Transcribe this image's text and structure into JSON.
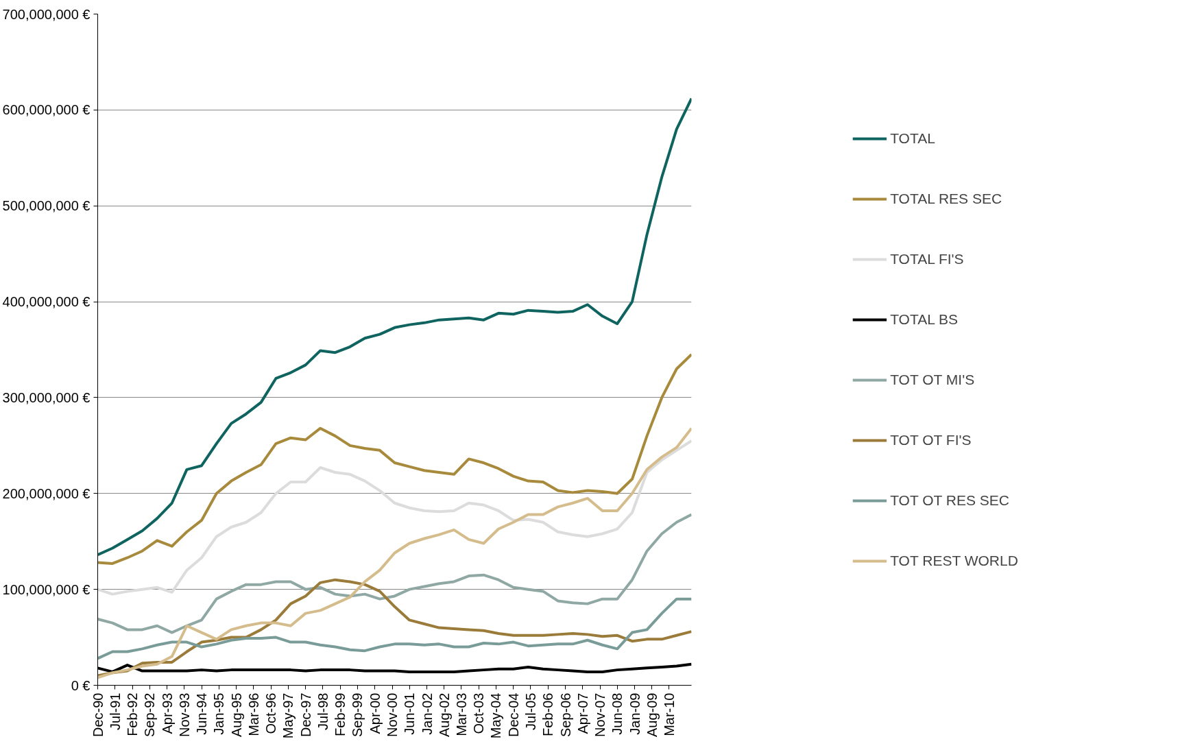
{
  "chart_data": {
    "type": "line",
    "x": [
      "1990-12",
      "1991-06",
      "1991-12",
      "1992-06",
      "1992-12",
      "1993-06",
      "1993-12",
      "1994-06",
      "1994-12",
      "1995-06",
      "1995-12",
      "1996-06",
      "1996-12",
      "1997-06",
      "1997-12",
      "1998-06",
      "1998-12",
      "1999-06",
      "1999-12",
      "2000-06",
      "2000-12",
      "2001-06",
      "2001-12",
      "2002-06",
      "2002-12",
      "2003-06",
      "2003-12",
      "2004-06",
      "2004-12",
      "2005-06",
      "2005-12",
      "2006-06",
      "2006-12",
      "2007-06",
      "2007-12",
      "2008-06",
      "2008-12",
      "2009-06",
      "2009-12",
      "2010-06",
      "2010-12"
    ],
    "series": [
      {
        "name": "TOTAL",
        "color": "#0f6460",
        "values": [
          136000000,
          143000000,
          152000000,
          161000000,
          174000000,
          190000000,
          225000000,
          229000000,
          252000000,
          273000000,
          283000000,
          295000000,
          320000000,
          326000000,
          334000000,
          349000000,
          347000000,
          353000000,
          362000000,
          366000000,
          373000000,
          376000000,
          378000000,
          381000000,
          382000000,
          383000000,
          381000000,
          388000000,
          387000000,
          391000000,
          390000000,
          389000000,
          390000000,
          397000000,
          385000000,
          377000000,
          400000000,
          470000000,
          530000000,
          580000000,
          612000000
        ]
      },
      {
        "name": "TOTAL RES SEC",
        "color": "#a88a3c",
        "values": [
          128000000,
          127000000,
          133000000,
          140000000,
          151000000,
          145000000,
          160000000,
          172000000,
          200000000,
          213000000,
          222000000,
          230000000,
          252000000,
          258000000,
          256000000,
          268000000,
          260000000,
          250000000,
          247000000,
          245000000,
          232000000,
          228000000,
          224000000,
          222000000,
          220000000,
          236000000,
          232000000,
          226000000,
          218000000,
          213000000,
          212000000,
          203000000,
          201000000,
          203000000,
          202000000,
          200000000,
          215000000,
          260000000,
          300000000,
          330000000,
          345000000
        ]
      },
      {
        "name": "TOTAL FI'S",
        "color": "#dcdcdc",
        "values": [
          100000000,
          95000000,
          98000000,
          100000000,
          102000000,
          97000000,
          120000000,
          133000000,
          155000000,
          165000000,
          170000000,
          180000000,
          200000000,
          212000000,
          212000000,
          227000000,
          222000000,
          220000000,
          213000000,
          203000000,
          190000000,
          185000000,
          182000000,
          181000000,
          182000000,
          190000000,
          188000000,
          182000000,
          172000000,
          173000000,
          170000000,
          160000000,
          157000000,
          155000000,
          158000000,
          163000000,
          180000000,
          222000000,
          235000000,
          245000000,
          255000000
        ]
      },
      {
        "name": "TOTAL BS",
        "color": "#000000",
        "values": [
          18000000,
          14000000,
          21000000,
          15000000,
          15000000,
          15000000,
          15000000,
          16000000,
          15000000,
          16000000,
          16000000,
          16000000,
          16000000,
          16000000,
          15000000,
          16000000,
          16000000,
          16000000,
          15000000,
          15000000,
          15000000,
          14000000,
          14000000,
          14000000,
          14000000,
          15000000,
          16000000,
          17000000,
          17000000,
          19000000,
          17000000,
          16000000,
          15000000,
          14000000,
          14000000,
          16000000,
          17000000,
          18000000,
          19000000,
          20000000,
          22000000
        ]
      },
      {
        "name": "TOT OT MI'S",
        "color": "#8fa8a4",
        "values": [
          69000000,
          65000000,
          58000000,
          58000000,
          62000000,
          55000000,
          62000000,
          68000000,
          90000000,
          98000000,
          105000000,
          105000000,
          108000000,
          108000000,
          100000000,
          102000000,
          95000000,
          93000000,
          95000000,
          90000000,
          93000000,
          100000000,
          103000000,
          106000000,
          108000000,
          114000000,
          115000000,
          110000000,
          102000000,
          100000000,
          98000000,
          88000000,
          86000000,
          85000000,
          90000000,
          90000000,
          110000000,
          140000000,
          158000000,
          170000000,
          178000000
        ]
      },
      {
        "name": "TOT OT FI'S",
        "color": "#9a7b3a",
        "values": [
          10000000,
          13000000,
          15000000,
          23000000,
          24000000,
          24000000,
          35000000,
          45000000,
          47000000,
          50000000,
          50000000,
          58000000,
          68000000,
          85000000,
          93000000,
          107000000,
          110000000,
          108000000,
          105000000,
          98000000,
          82000000,
          68000000,
          64000000,
          60000000,
          59000000,
          58000000,
          57000000,
          54000000,
          52000000,
          52000000,
          52000000,
          53000000,
          54000000,
          53000000,
          51000000,
          52000000,
          46000000,
          48000000,
          48000000,
          52000000,
          56000000
        ]
      },
      {
        "name": "TOT OT RES SEC",
        "color": "#7a9c98",
        "values": [
          28000000,
          35000000,
          35000000,
          38000000,
          42000000,
          45000000,
          45000000,
          40000000,
          43000000,
          47000000,
          49000000,
          49000000,
          50000000,
          45000000,
          45000000,
          42000000,
          40000000,
          37000000,
          36000000,
          40000000,
          43000000,
          43000000,
          42000000,
          43000000,
          40000000,
          40000000,
          44000000,
          43000000,
          45000000,
          41000000,
          42000000,
          43000000,
          43000000,
          47000000,
          42000000,
          38000000,
          55000000,
          58000000,
          75000000,
          90000000,
          90000000
        ]
      },
      {
        "name": "TOT REST WORLD",
        "color": "#d4bc8c",
        "values": [
          8000000,
          13000000,
          16000000,
          20000000,
          22000000,
          30000000,
          62000000,
          55000000,
          48000000,
          58000000,
          62000000,
          65000000,
          65000000,
          62000000,
          75000000,
          78000000,
          85000000,
          92000000,
          108000000,
          120000000,
          138000000,
          148000000,
          153000000,
          157000000,
          162000000,
          152000000,
          148000000,
          163000000,
          170000000,
          178000000,
          178000000,
          186000000,
          190000000,
          195000000,
          182000000,
          182000000,
          200000000,
          225000000,
          238000000,
          248000000,
          268000000
        ]
      }
    ],
    "xlim": [
      "1990-12",
      "2010-12"
    ],
    "xticks": [
      {
        "value": "1990-12",
        "label": "Dec-90"
      },
      {
        "value": "1991-07",
        "label": "Jul-91"
      },
      {
        "value": "1992-02",
        "label": "Feb-92"
      },
      {
        "value": "1992-09",
        "label": "Sep-92"
      },
      {
        "value": "1993-04",
        "label": "Apr-93"
      },
      {
        "value": "1993-11",
        "label": "Nov-93"
      },
      {
        "value": "1994-06",
        "label": "Jun-94"
      },
      {
        "value": "1995-01",
        "label": "Jan-95"
      },
      {
        "value": "1995-08",
        "label": "Aug-95"
      },
      {
        "value": "1996-03",
        "label": "Mar-96"
      },
      {
        "value": "1996-10",
        "label": "Oct-96"
      },
      {
        "value": "1997-05",
        "label": "May-97"
      },
      {
        "value": "1997-12",
        "label": "Dec-97"
      },
      {
        "value": "1998-07",
        "label": "Jul-98"
      },
      {
        "value": "1999-02",
        "label": "Feb-99"
      },
      {
        "value": "1999-09",
        "label": "Sep-99"
      },
      {
        "value": "2000-04",
        "label": "Apr-00"
      },
      {
        "value": "2000-11",
        "label": "Nov-00"
      },
      {
        "value": "2001-06",
        "label": "Jun-01"
      },
      {
        "value": "2002-01",
        "label": "Jan-02"
      },
      {
        "value": "2002-08",
        "label": "Aug-02"
      },
      {
        "value": "2003-03",
        "label": "Mar-03"
      },
      {
        "value": "2003-10",
        "label": "Oct-03"
      },
      {
        "value": "2004-05",
        "label": "May-04"
      },
      {
        "value": "2004-12",
        "label": "Dec-04"
      },
      {
        "value": "2005-07",
        "label": "Jul-05"
      },
      {
        "value": "2006-02",
        "label": "Feb-06"
      },
      {
        "value": "2006-09",
        "label": "Sep-06"
      },
      {
        "value": "2007-04",
        "label": "Apr-07"
      },
      {
        "value": "2007-11",
        "label": "Nov-07"
      },
      {
        "value": "2008-06",
        "label": "Jun-08"
      },
      {
        "value": "2009-01",
        "label": "Jan-09"
      },
      {
        "value": "2009-08",
        "label": "Aug-09"
      },
      {
        "value": "2010-03",
        "label": "Mar-10"
      }
    ],
    "ylim": [
      0,
      700000000
    ],
    "yticks": [
      {
        "value": 0,
        "label": "0 €"
      },
      {
        "value": 100000000,
        "label": "100,000,000 €"
      },
      {
        "value": 200000000,
        "label": "200,000,000 €"
      },
      {
        "value": 300000000,
        "label": "300,000,000 €"
      },
      {
        "value": 400000000,
        "label": "400,000,000 €"
      },
      {
        "value": 500000000,
        "label": "500,000,000 €"
      },
      {
        "value": 600000000,
        "label": "600,000,000 €"
      },
      {
        "value": 700000000,
        "label": "700,000,000 €"
      }
    ],
    "grid": "y",
    "legend": "right",
    "marker": "none",
    "line_style": "solid"
  }
}
